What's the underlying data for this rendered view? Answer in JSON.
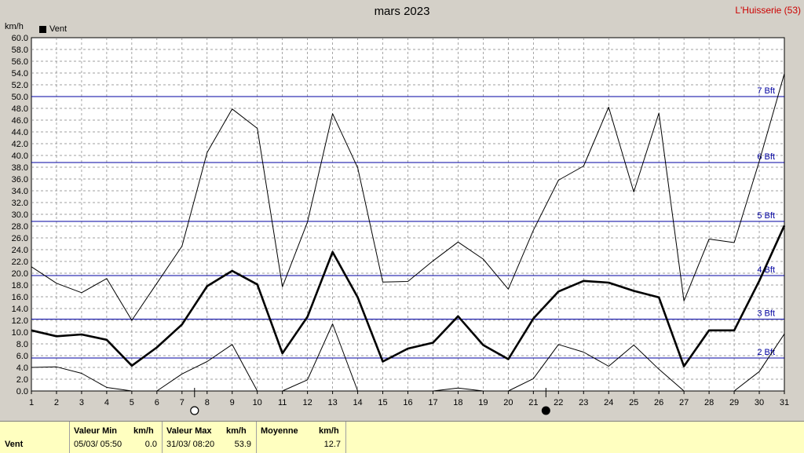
{
  "title": "mars 2023",
  "station": "L'Huisserie (53)",
  "unit_label": "km/h",
  "legend_label": "Vent",
  "chart_data": {
    "type": "line",
    "title": "mars 2023",
    "ylabel": "km/h",
    "x": [
      1,
      2,
      3,
      4,
      5,
      6,
      7,
      8,
      9,
      10,
      11,
      12,
      13,
      14,
      15,
      16,
      17,
      18,
      19,
      20,
      21,
      22,
      23,
      24,
      25,
      26,
      27,
      28,
      29,
      30,
      31
    ],
    "ylim": [
      0,
      60
    ],
    "ytick_step": 2,
    "grid": true,
    "series": [
      {
        "name": "Vent",
        "role": "mean",
        "values": [
          10.3,
          9.3,
          9.6,
          8.7,
          4.3,
          7.4,
          11.3,
          17.8,
          20.4,
          18.1,
          6.4,
          12.6,
          23.6,
          15.9,
          5.0,
          7.2,
          8.2,
          12.7,
          7.8,
          5.4,
          12.3,
          16.9,
          18.7,
          18.4,
          17.0,
          15.9,
          4.2,
          10.3,
          10.3,
          18.7,
          28.1
        ]
      },
      {
        "role": "max",
        "values": [
          21.1,
          18.3,
          16.7,
          19.1,
          12.0,
          18.3,
          24.6,
          40.5,
          47.9,
          44.6,
          17.7,
          28.7,
          47.1,
          37.9,
          18.5,
          18.6,
          22.1,
          25.3,
          22.4,
          17.3,
          27.3,
          35.8,
          38.2,
          48.2,
          33.8,
          47.2,
          15.3,
          25.8,
          25.2,
          39.0,
          53.9
        ]
      },
      {
        "role": "min",
        "values": [
          4.0,
          4.1,
          3.0,
          0.6,
          0.0,
          0.0,
          2.9,
          5.0,
          7.9,
          0.0,
          0.0,
          1.9,
          11.4,
          0.0,
          null,
          null,
          0.0,
          0.5,
          0.0,
          0.0,
          2.1,
          7.9,
          6.6,
          4.2,
          7.8,
          3.7,
          0.0,
          null,
          0.0,
          3.3,
          9.7
        ]
      }
    ],
    "beaufort_lines": [
      {
        "label": "2 Bft",
        "value": 5.6
      },
      {
        "label": "3 Bft",
        "value": 12.2
      },
      {
        "label": "4 Bft",
        "value": 19.6
      },
      {
        "label": "5 Bft",
        "value": 28.8
      },
      {
        "label": "6 Bft",
        "value": 38.8
      },
      {
        "label": "7 Bft",
        "value": 50.0
      }
    ],
    "moon_phases": [
      {
        "day": 7.5,
        "phase": "full"
      },
      {
        "day": 21.5,
        "phase": "new"
      }
    ],
    "colors": {
      "line": "#000000",
      "beaufort": "#0000a0",
      "grid": "#808080",
      "background": "#ffffff"
    }
  },
  "footer": {
    "row_label": "Vent",
    "min_header": "Valeur Min",
    "min_unit": "km/h",
    "min_datetime": "05/03/  05:50",
    "min_value": "0.0",
    "max_header": "Valeur Max",
    "max_unit": "km/h",
    "max_datetime": "31/03/  08:20",
    "max_value": "53.9",
    "mean_header": "Moyenne",
    "mean_unit": "km/h",
    "mean_value": "12.7"
  }
}
